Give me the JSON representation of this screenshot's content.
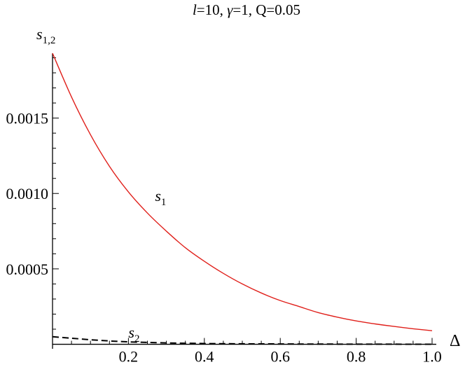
{
  "chart_data": {
    "type": "line",
    "title_parts": {
      "l_sym": "l",
      "l_val": "=10, ",
      "gamma_sym": "γ",
      "rest": "=1, Q=0.05"
    },
    "xlabel": "Δ",
    "ylabel": {
      "base": "s",
      "sub": "1,2"
    },
    "xlim": [
      0,
      1.0
    ],
    "ylim": [
      -3e-05,
      0.00193
    ],
    "x_ticks": [
      {
        "v": 0.2,
        "label": "0.2"
      },
      {
        "v": 0.4,
        "label": "0.4"
      },
      {
        "v": 0.6,
        "label": "0.6"
      },
      {
        "v": 0.8,
        "label": "0.8"
      },
      {
        "v": 1.0,
        "label": "1.0"
      }
    ],
    "y_ticks": [
      {
        "v": 0.0005,
        "label": "0.0005"
      },
      {
        "v": 0.001,
        "label": "0.0010"
      },
      {
        "v": 0.0015,
        "label": "0.0015"
      }
    ],
    "grid": false,
    "series": [
      {
        "name": "s1",
        "label_base": "s",
        "label_sub": "1",
        "label_at": [
          0.27,
          0.00095
        ],
        "color": "#e0201b",
        "style": "solid",
        "x": [
          0,
          0.05,
          0.1,
          0.15,
          0.2,
          0.25,
          0.3,
          0.35,
          0.4,
          0.45,
          0.5,
          0.55,
          0.6,
          0.65,
          0.7,
          0.75,
          0.8,
          0.85,
          0.9,
          0.95,
          1.0
        ],
        "y": [
          0.00193,
          0.00164,
          0.00139,
          0.00118,
          0.00101,
          0.00087,
          0.00075,
          0.00064,
          0.00055,
          0.00047,
          0.0004,
          0.00034,
          0.00029,
          0.00025,
          0.00021,
          0.00018,
          0.000155,
          0.000135,
          0.000118,
          0.000103,
          9e-05
        ]
      },
      {
        "name": "s2",
        "label_base": "s",
        "label_sub": "2",
        "label_at": [
          0.2,
          4.5e-05
        ],
        "color": "#000000",
        "style": "dashed",
        "x": [
          0,
          0.05,
          0.1,
          0.15,
          0.2,
          0.3,
          0.4,
          0.5,
          0.6,
          0.7,
          0.8,
          0.9,
          1.0
        ],
        "y": [
          5e-05,
          4e-05,
          3e-05,
          2.2e-05,
          1.6e-05,
          9e-06,
          5e-06,
          3e-06,
          2e-06,
          1.2e-06,
          8e-07,
          5e-07,
          3e-07
        ]
      }
    ]
  }
}
